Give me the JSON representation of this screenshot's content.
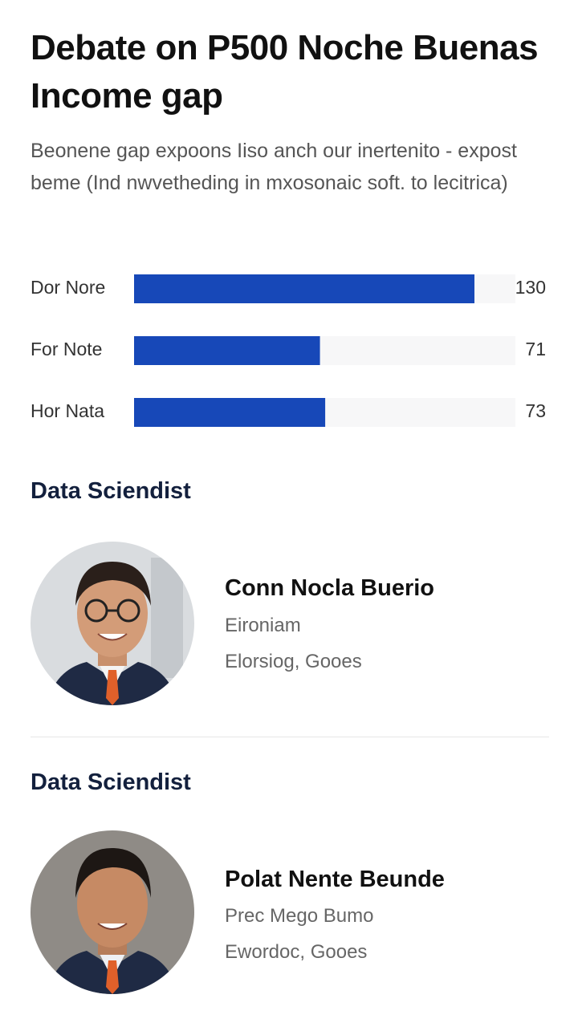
{
  "header": {
    "title": "Debate on P500 Noche Buenas Income gap",
    "subtitle": "Beonene gap expoons Iiso anch our inertenito - expost beme (Ind nwvetheding in mxosonaic soft. to lecitrica)"
  },
  "bars": {
    "color": "#1748b8",
    "items": [
      {
        "label": "Dor Nore",
        "value": 130
      },
      {
        "label": "For Note",
        "value": 71
      },
      {
        "label": "Hor Nata",
        "value": 73
      }
    ]
  },
  "profiles": [
    {
      "section": "Data Sciendist",
      "name": "Conn Nocla Buerio",
      "role": "Eironiam",
      "org": "Elorsiog, Gooes"
    },
    {
      "section": "Data Sciendist",
      "name": "Polat Nente Beunde",
      "role": "Prec Mego Bumo",
      "org": "Ewordoc, Gooes"
    }
  ]
}
